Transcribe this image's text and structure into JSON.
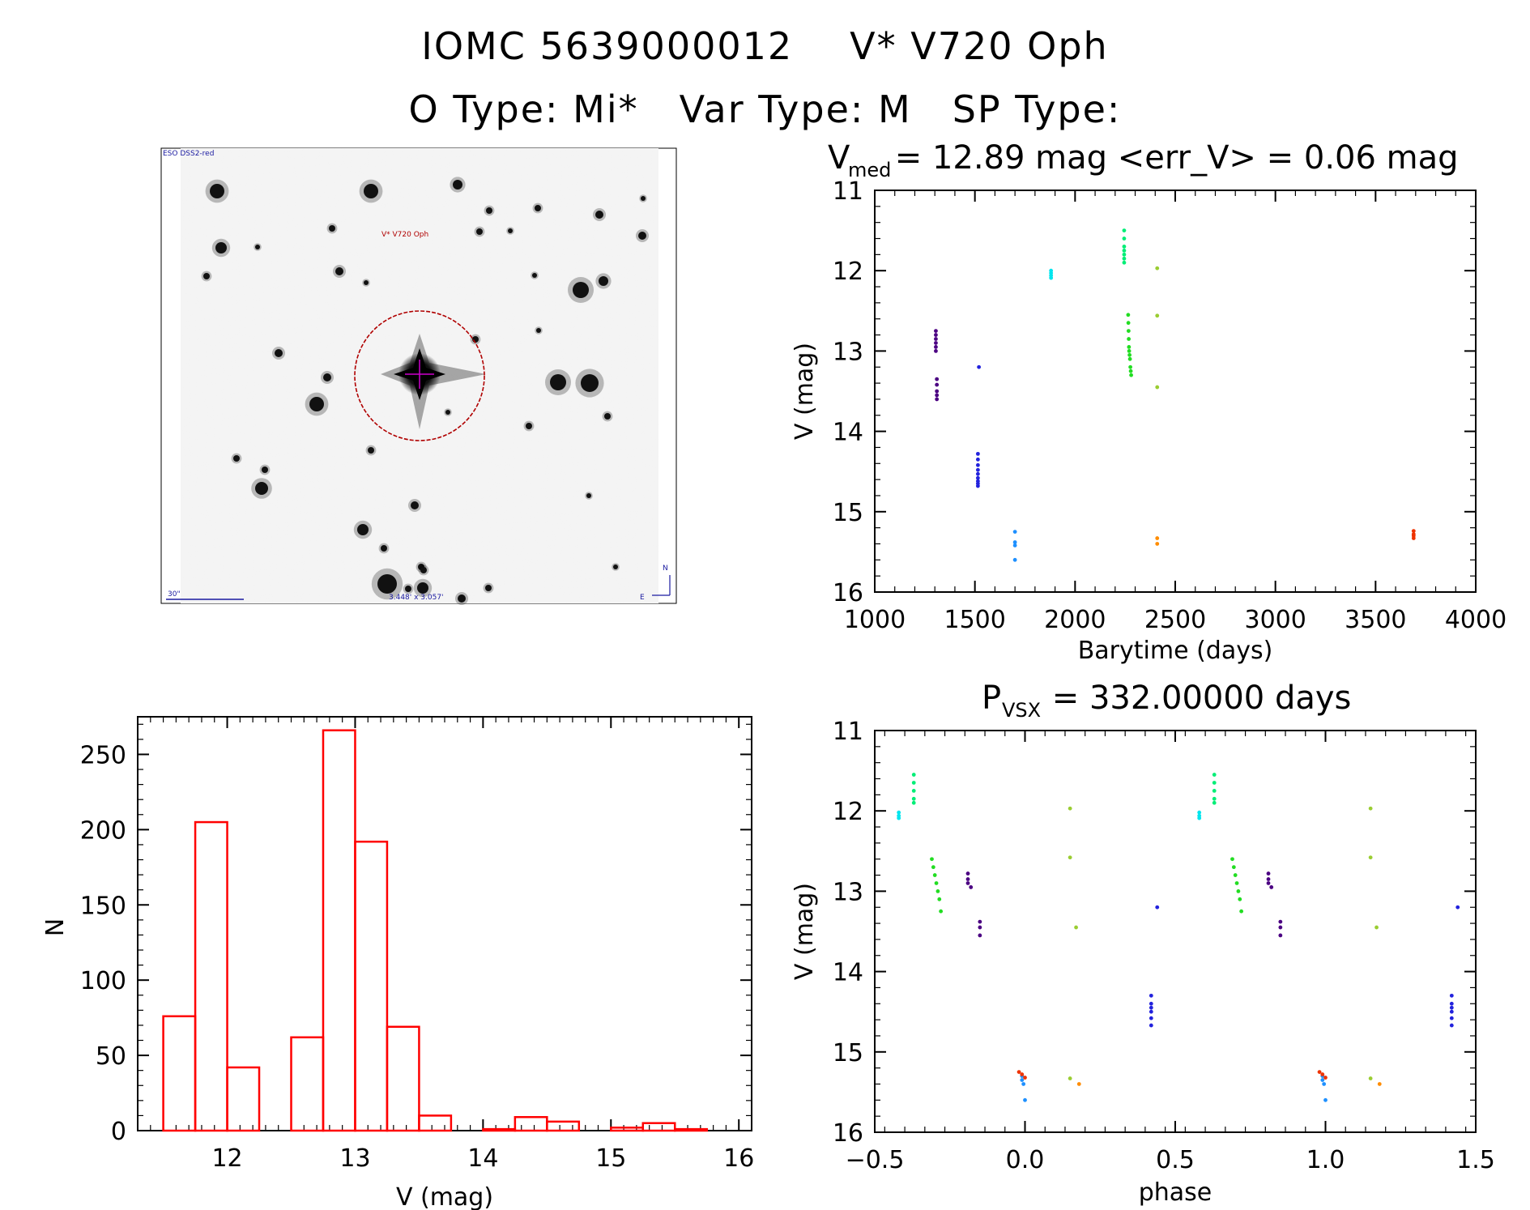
{
  "header": {
    "title_id": "IOMC 5639000012",
    "title_name": "V* V720 Oph",
    "otype_label": "O Type: Mi*",
    "vartype_label": "Var Type: M",
    "sptype_label": "SP Type:"
  },
  "finder": {
    "survey_label": "ESO DSS2-red",
    "target_label": "V* V720 Oph",
    "scale_label": "30\"",
    "fov_label": "3.448' x 3.057'",
    "north_label": "N",
    "east_label": "E"
  },
  "colors": {
    "hist": "#ff0000",
    "circle": "#b00000",
    "finder_text": "#1a1aa0"
  },
  "chart_data": [
    {
      "id": "lightcurve",
      "type": "scatter",
      "title_main": "V",
      "title_sub": "med",
      "title_rest": " = 12.89 mag <err_V> = 0.06 mag",
      "xlabel": "Barytime (days)",
      "ylabel": "V (mag)",
      "xlim": [
        1000,
        4000
      ],
      "ylim": [
        16,
        11
      ],
      "xticks": [
        1000,
        1500,
        2000,
        2500,
        3000,
        3500,
        4000
      ],
      "yticks": [
        11,
        12,
        13,
        14,
        15,
        16
      ],
      "series": [
        {
          "color": "#4b0082",
          "x": [
            1305,
            1305,
            1305,
            1305,
            1305,
            1305,
            1310,
            1310,
            1310,
            1310,
            1310
          ],
          "y": [
            12.75,
            12.8,
            12.85,
            12.9,
            12.95,
            13.0,
            13.35,
            13.42,
            13.5,
            13.55,
            13.6
          ]
        },
        {
          "color": "#2222dd",
          "x": [
            1520,
            1515,
            1515,
            1515,
            1515,
            1515,
            1515,
            1515,
            1515,
            1515
          ],
          "y": [
            13.2,
            14.28,
            14.35,
            14.42,
            14.48,
            14.53,
            14.58,
            14.62,
            14.65,
            14.68
          ]
        },
        {
          "color": "#1e90ff",
          "x": [
            1700,
            1700,
            1700,
            1700
          ],
          "y": [
            15.25,
            15.38,
            15.42,
            15.6
          ]
        },
        {
          "color": "#00e5ee",
          "x": [
            1880,
            1880,
            1880,
            1880
          ],
          "y": [
            12.0,
            12.03,
            12.06,
            12.09
          ]
        },
        {
          "color": "#00ee76",
          "x": [
            2245,
            2245,
            2245,
            2245,
            2245,
            2245,
            2245
          ],
          "y": [
            11.5,
            11.6,
            11.7,
            11.75,
            11.8,
            11.85,
            11.9
          ]
        },
        {
          "color": "#22dd22",
          "x": [
            2265,
            2266,
            2267,
            2268,
            2269,
            2270,
            2272,
            2274,
            2276,
            2278,
            2280
          ],
          "y": [
            12.55,
            12.65,
            12.75,
            12.85,
            12.95,
            13.0,
            13.05,
            13.1,
            13.2,
            13.25,
            13.3
          ]
        },
        {
          "color": "#9acd32",
          "x": [
            2410,
            2410,
            2410
          ],
          "y": [
            11.97,
            12.56,
            13.45
          ]
        },
        {
          "color": "#ff8c00",
          "x": [
            2410,
            2410
          ],
          "y": [
            15.33,
            15.4
          ]
        },
        {
          "color": "#ee3300",
          "x": [
            3690,
            3690,
            3690,
            3690
          ],
          "y": [
            15.24,
            15.28,
            15.3,
            15.33
          ]
        }
      ]
    },
    {
      "id": "histogram",
      "type": "bar",
      "xlabel": "V (mag)",
      "ylabel": "N",
      "xlim": [
        11.3,
        16.1
      ],
      "ylim": [
        0,
        275
      ],
      "xticks": [
        12,
        13,
        14,
        15,
        16
      ],
      "yticks": [
        0,
        50,
        100,
        150,
        200,
        250
      ],
      "bin_width": 0.25,
      "bin_starts": [
        11.5,
        11.75,
        12.0,
        12.25,
        12.5,
        12.75,
        13.0,
        13.25,
        13.5,
        13.75,
        14.0,
        14.25,
        14.5,
        14.75,
        15.0,
        15.25,
        15.5,
        15.75
      ],
      "values": [
        76,
        205,
        42,
        0,
        62,
        266,
        192,
        69,
        10,
        0,
        1,
        9,
        6,
        0,
        2,
        5,
        1,
        0
      ]
    },
    {
      "id": "phased",
      "type": "scatter",
      "title_main": "P",
      "title_sub": "VSX",
      "title_rest": " = 332.00000 days",
      "xlabel": "phase",
      "ylabel": "V (mag)",
      "xlim": [
        -0.5,
        1.5
      ],
      "ylim": [
        16,
        11
      ],
      "xticks": [
        -0.5,
        0.0,
        0.5,
        1.0,
        1.5
      ],
      "xtick_labels": [
        "−0.5",
        "0.0",
        "0.5",
        "1.0",
        "1.5"
      ],
      "yticks": [
        11,
        12,
        13,
        14,
        15,
        16
      ],
      "series": [
        {
          "color": "#00e5ee",
          "x": [
            -0.42,
            -0.42,
            -0.42,
            0.58,
            0.58,
            0.58
          ],
          "y": [
            12.02,
            12.06,
            12.09,
            12.02,
            12.06,
            12.09
          ]
        },
        {
          "color": "#00ee76",
          "x": [
            -0.37,
            -0.37,
            -0.37,
            -0.37,
            -0.37,
            0.63,
            0.63,
            0.63,
            0.63,
            0.63
          ],
          "y": [
            11.55,
            11.65,
            11.75,
            11.85,
            11.9,
            11.55,
            11.65,
            11.75,
            11.85,
            11.9
          ]
        },
        {
          "color": "#22dd22",
          "x": [
            -0.31,
            -0.305,
            -0.3,
            -0.295,
            -0.29,
            -0.285,
            -0.28,
            0.69,
            0.695,
            0.7,
            0.705,
            0.71,
            0.715,
            0.72
          ],
          "y": [
            12.6,
            12.7,
            12.8,
            12.9,
            13.0,
            13.1,
            13.25,
            12.6,
            12.7,
            12.8,
            12.9,
            13.0,
            13.1,
            13.25
          ]
        },
        {
          "color": "#4b0082",
          "x": [
            -0.19,
            -0.19,
            -0.19,
            -0.18,
            -0.15,
            -0.15,
            -0.15,
            0.81,
            0.81,
            0.81,
            0.82,
            0.85,
            0.85,
            0.85
          ],
          "y": [
            12.78,
            12.85,
            12.9,
            12.95,
            13.38,
            13.45,
            13.55,
            12.78,
            12.85,
            12.9,
            12.95,
            13.38,
            13.45,
            13.55
          ]
        },
        {
          "color": "#1e90ff",
          "x": [
            -0.01,
            -0.005,
            0.0,
            -0.01,
            0.99,
            0.995,
            1.0,
            0.99
          ],
          "y": [
            15.35,
            15.4,
            15.6,
            15.3,
            15.35,
            15.4,
            15.6,
            15.3
          ]
        },
        {
          "color": "#ee3300",
          "x": [
            -0.02,
            -0.01,
            0.0,
            0.98,
            0.99,
            1.0
          ],
          "y": [
            15.25,
            15.28,
            15.32,
            15.25,
            15.28,
            15.32
          ]
        },
        {
          "color": "#9acd32",
          "x": [
            0.15,
            0.15,
            0.17,
            0.15,
            1.15,
            1.15,
            1.17,
            1.15
          ],
          "y": [
            11.97,
            12.58,
            13.45,
            15.33,
            11.97,
            12.58,
            13.45,
            15.33
          ]
        },
        {
          "color": "#ff8c00",
          "x": [
            0.18,
            1.18
          ],
          "y": [
            15.4,
            15.4
          ]
        },
        {
          "color": "#2222dd",
          "x": [
            0.42,
            0.42,
            0.42,
            0.42,
            0.42,
            0.42,
            0.44,
            1.42,
            1.42,
            1.42,
            1.42,
            1.42,
            1.42,
            1.44
          ],
          "y": [
            14.3,
            14.4,
            14.45,
            14.5,
            14.58,
            14.67,
            13.2,
            14.3,
            14.4,
            14.45,
            14.5,
            14.58,
            14.67,
            13.2
          ]
        }
      ]
    }
  ]
}
